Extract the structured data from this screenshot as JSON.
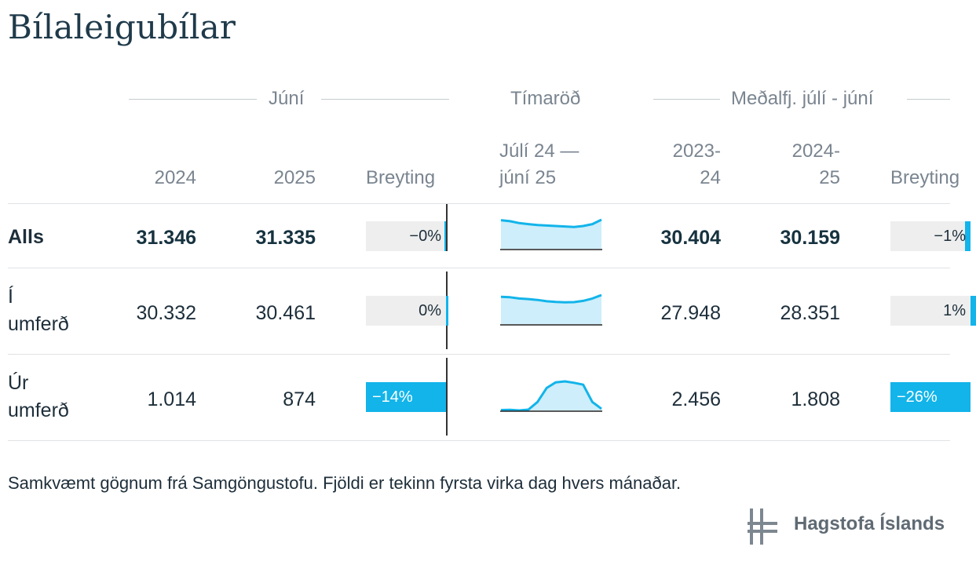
{
  "title": "Bílaleigubílar",
  "groups": {
    "month": "Júní",
    "series": "Tímaröð",
    "average": "Meðalfj. júlí - júní"
  },
  "columns": {
    "y2024": "2024",
    "y2025": "2025",
    "change": "Breyting",
    "series_l1": "Júlí 24 —",
    "series_l2": "júní 25",
    "avg1_l1": "2023-",
    "avg1_l2": "24",
    "avg2_l1": "2024-",
    "avg2_l2": "25",
    "change2": "Breyting"
  },
  "chart_data": {
    "type": "table",
    "columns": [
      "Júní 2024",
      "Júní 2025",
      "Breyting",
      "Tímaröð Júlí 24 — júní 25",
      "Meðalfj. 2023-24",
      "Meðalfj. 2024-25",
      "Breyting"
    ],
    "rows": [
      {
        "label_l1": "Alls",
        "label_l2": "",
        "jun2024": "31.346",
        "jun2025": "31.335",
        "change": "−0%",
        "change_value": -0.04,
        "avg2324": "30.404",
        "avg2425": "30.159",
        "change2": "−1%",
        "change2_value": -1,
        "sparkline": [
          31.2,
          31.0,
          30.6,
          30.4,
          30.2,
          30.1,
          30.0,
          29.9,
          29.8,
          30.0,
          30.4,
          31.3
        ]
      },
      {
        "label_l1": "Í",
        "label_l2": "umferð",
        "jun2024": "30.332",
        "jun2025": "30.461",
        "change": "0%",
        "change_value": 0.4,
        "avg2324": "27.948",
        "avg2425": "28.351",
        "change2": "1%",
        "change2_value": 1,
        "sparkline": [
          29.5,
          29.3,
          28.6,
          28.3,
          27.8,
          27.1,
          26.7,
          26.5,
          26.6,
          27.3,
          28.6,
          30.5
        ]
      },
      {
        "label_l1": "Úr",
        "label_l2": "umferð",
        "jun2024": "1.014",
        "jun2025": "874",
        "change": "−14%",
        "change_value": -14,
        "avg2324": "2.456",
        "avg2425": "1.808",
        "change2": "−26%",
        "change2_value": -26,
        "sparkline": [
          740,
          760,
          700,
          780,
          1600,
          3100,
          3700,
          3800,
          3650,
          3450,
          1600,
          874
        ]
      }
    ]
  },
  "colors": {
    "accent": "#12b4ea",
    "spark_fill": "#cdeefa",
    "bar_bg": "#eeeeee",
    "text": "#1d2e3a",
    "muted": "#7a8590"
  },
  "footer": "Samkvæmt gögnum frá Samgöngustofu. Fjöldi er tekinn fyrsta virka dag hvers mánaðar.",
  "logo": "Hagstofa Íslands"
}
